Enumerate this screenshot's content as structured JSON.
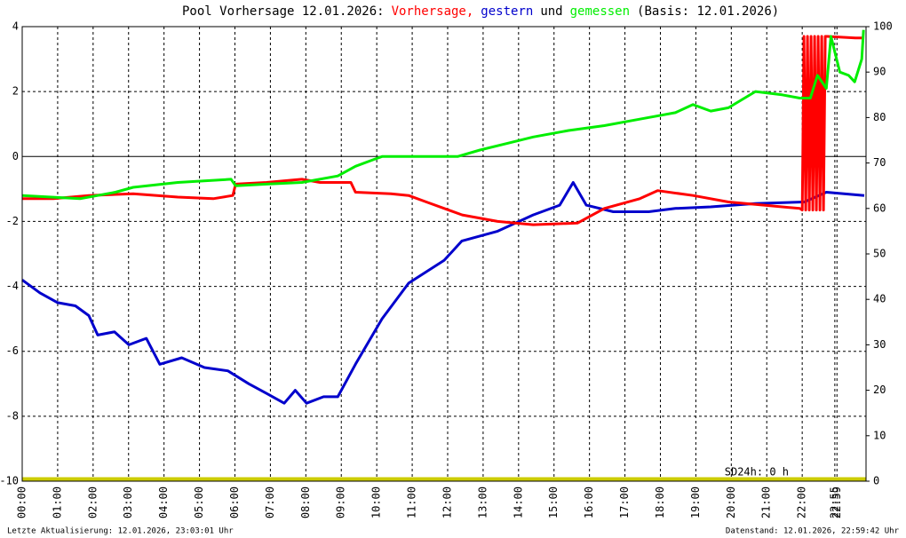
{
  "chart_data": {
    "type": "line",
    "title": "Pool Vorhersage 12.01.2026:",
    "title_joiner": "und",
    "title_suffix": "(Basis: 12.01.2026)",
    "annotation": "SD24h: 0 h",
    "footer_left": "Letzte Aktualisierung: 12.01.2026, 23:03:01 Uhr",
    "footer_right": "Datenstand: 12.01.2026, 22:59:42 Uhr",
    "xlim": [
      0,
      23.8
    ],
    "xticks": [
      {
        "value": 0,
        "label": "00:00"
      },
      {
        "value": 1,
        "label": "01:00"
      },
      {
        "value": 2,
        "label": "02:00"
      },
      {
        "value": 3,
        "label": "03:00"
      },
      {
        "value": 4,
        "label": "04:00"
      },
      {
        "value": 5,
        "label": "05:00"
      },
      {
        "value": 6,
        "label": "06:00"
      },
      {
        "value": 7,
        "label": "07:00"
      },
      {
        "value": 8,
        "label": "08:00"
      },
      {
        "value": 9,
        "label": "09:00"
      },
      {
        "value": 10,
        "label": "10:00"
      },
      {
        "value": 11,
        "label": "11:00"
      },
      {
        "value": 12,
        "label": "12:00"
      },
      {
        "value": 13,
        "label": "13:00"
      },
      {
        "value": 14,
        "label": "14:00"
      },
      {
        "value": 15,
        "label": "15:00"
      },
      {
        "value": 16,
        "label": "16:00"
      },
      {
        "value": 17,
        "label": "17:00"
      },
      {
        "value": 18,
        "label": "18:00"
      },
      {
        "value": 19,
        "label": "19:00"
      },
      {
        "value": 20,
        "label": "20:00"
      },
      {
        "value": 21,
        "label": "21:00"
      },
      {
        "value": 22,
        "label": "22:00"
      },
      {
        "value": 22.92,
        "label": "22:55"
      },
      {
        "value": 22.98,
        "label": "22:59"
      }
    ],
    "ylim": [
      -10,
      4
    ],
    "yticks": [
      -10,
      -8,
      -6,
      -4,
      -2,
      0,
      2,
      4
    ],
    "y2lim": [
      0,
      100
    ],
    "y2ticks": [
      0,
      10,
      20,
      30,
      40,
      50,
      60,
      70,
      80,
      90,
      100
    ],
    "grid": true,
    "sun_color": "#cccc00",
    "series": [
      {
        "name": "Vorhersage,",
        "color": "#ff0000",
        "x": [
          0,
          0.88,
          1.88,
          3.13,
          4.39,
          5.39,
          5.94,
          6.02,
          6.89,
          7.89,
          8.4,
          9.27,
          9.4,
          10.4,
          10.9,
          11.4,
          12.41,
          13.41,
          14.41,
          15.66,
          16.42,
          17.42,
          17.92,
          18.92,
          19.92,
          20.93,
          21.93,
          22.0,
          22.05,
          22.1,
          22.15,
          22.2,
          22.25,
          22.3,
          22.35,
          22.4,
          22.45,
          22.5,
          22.55,
          22.6,
          22.65,
          22.7,
          23.5,
          23.75
        ],
        "values": [
          -1.3,
          -1.3,
          -1.2,
          -1.15,
          -1.25,
          -1.3,
          -1.2,
          -0.85,
          -0.8,
          -0.7,
          -0.8,
          -0.8,
          -1.1,
          -1.15,
          -1.2,
          -1.4,
          -1.8,
          -2.0,
          -2.1,
          -2.05,
          -1.6,
          -1.3,
          -1.05,
          -1.2,
          -1.4,
          -1.5,
          -1.6,
          -1.65,
          3.7,
          -1.65,
          3.7,
          -1.65,
          3.7,
          -1.65,
          3.7,
          -1.65,
          3.7,
          -1.65,
          3.7,
          -1.65,
          3.7,
          3.7,
          3.65,
          3.65
        ]
      },
      {
        "name": "gestern",
        "color": "#0000cc",
        "x": [
          0,
          0.5,
          1.0,
          1.5,
          1.88,
          2.13,
          2.6,
          3.01,
          3.5,
          3.88,
          4.5,
          5.14,
          5.8,
          6.39,
          6.9,
          7.39,
          7.7,
          8.02,
          8.5,
          8.9,
          9.4,
          10.15,
          10.9,
          11.9,
          12.4,
          13.41,
          14.41,
          15.16,
          15.54,
          15.91,
          16.67,
          17.67,
          18.42,
          19.42,
          20.68,
          22.06,
          22.68,
          23.75
        ],
        "values": [
          -3.8,
          -4.2,
          -4.5,
          -4.6,
          -4.9,
          -5.5,
          -5.4,
          -5.8,
          -5.6,
          -6.4,
          -6.2,
          -6.5,
          -6.6,
          -7.0,
          -7.3,
          -7.6,
          -7.2,
          -7.6,
          -7.4,
          -7.4,
          -6.4,
          -5.0,
          -3.9,
          -3.2,
          -2.6,
          -2.3,
          -1.8,
          -1.5,
          -0.8,
          -1.5,
          -1.7,
          -1.7,
          -1.6,
          -1.55,
          -1.45,
          -1.4,
          -1.1,
          -1.2
        ]
      },
      {
        "name": "gemessen",
        "color": "#00ee00",
        "x": [
          0,
          1.63,
          2.63,
          3.13,
          4.39,
          5.89,
          6.02,
          6.89,
          7.89,
          8.9,
          9.4,
          9.9,
          10.15,
          12.28,
          12.91,
          13.66,
          14.41,
          15.41,
          16.42,
          17.42,
          18.42,
          18.92,
          19.42,
          19.92,
          20.68,
          21.43,
          21.93,
          22.23,
          22.43,
          22.68,
          22.81,
          23.06,
          23.31,
          23.48,
          23.68,
          23.73
        ],
        "values": [
          -1.2,
          -1.3,
          -1.1,
          -0.95,
          -0.8,
          -0.7,
          -0.9,
          -0.85,
          -0.8,
          -0.6,
          -0.3,
          -0.1,
          0,
          0,
          0.2,
          0.4,
          0.6,
          0.8,
          0.95,
          1.15,
          1.35,
          1.6,
          1.4,
          1.5,
          2.0,
          1.9,
          1.8,
          1.8,
          2.5,
          2.1,
          3.7,
          2.6,
          2.5,
          2.3,
          3.0,
          3.9
        ]
      }
    ]
  }
}
